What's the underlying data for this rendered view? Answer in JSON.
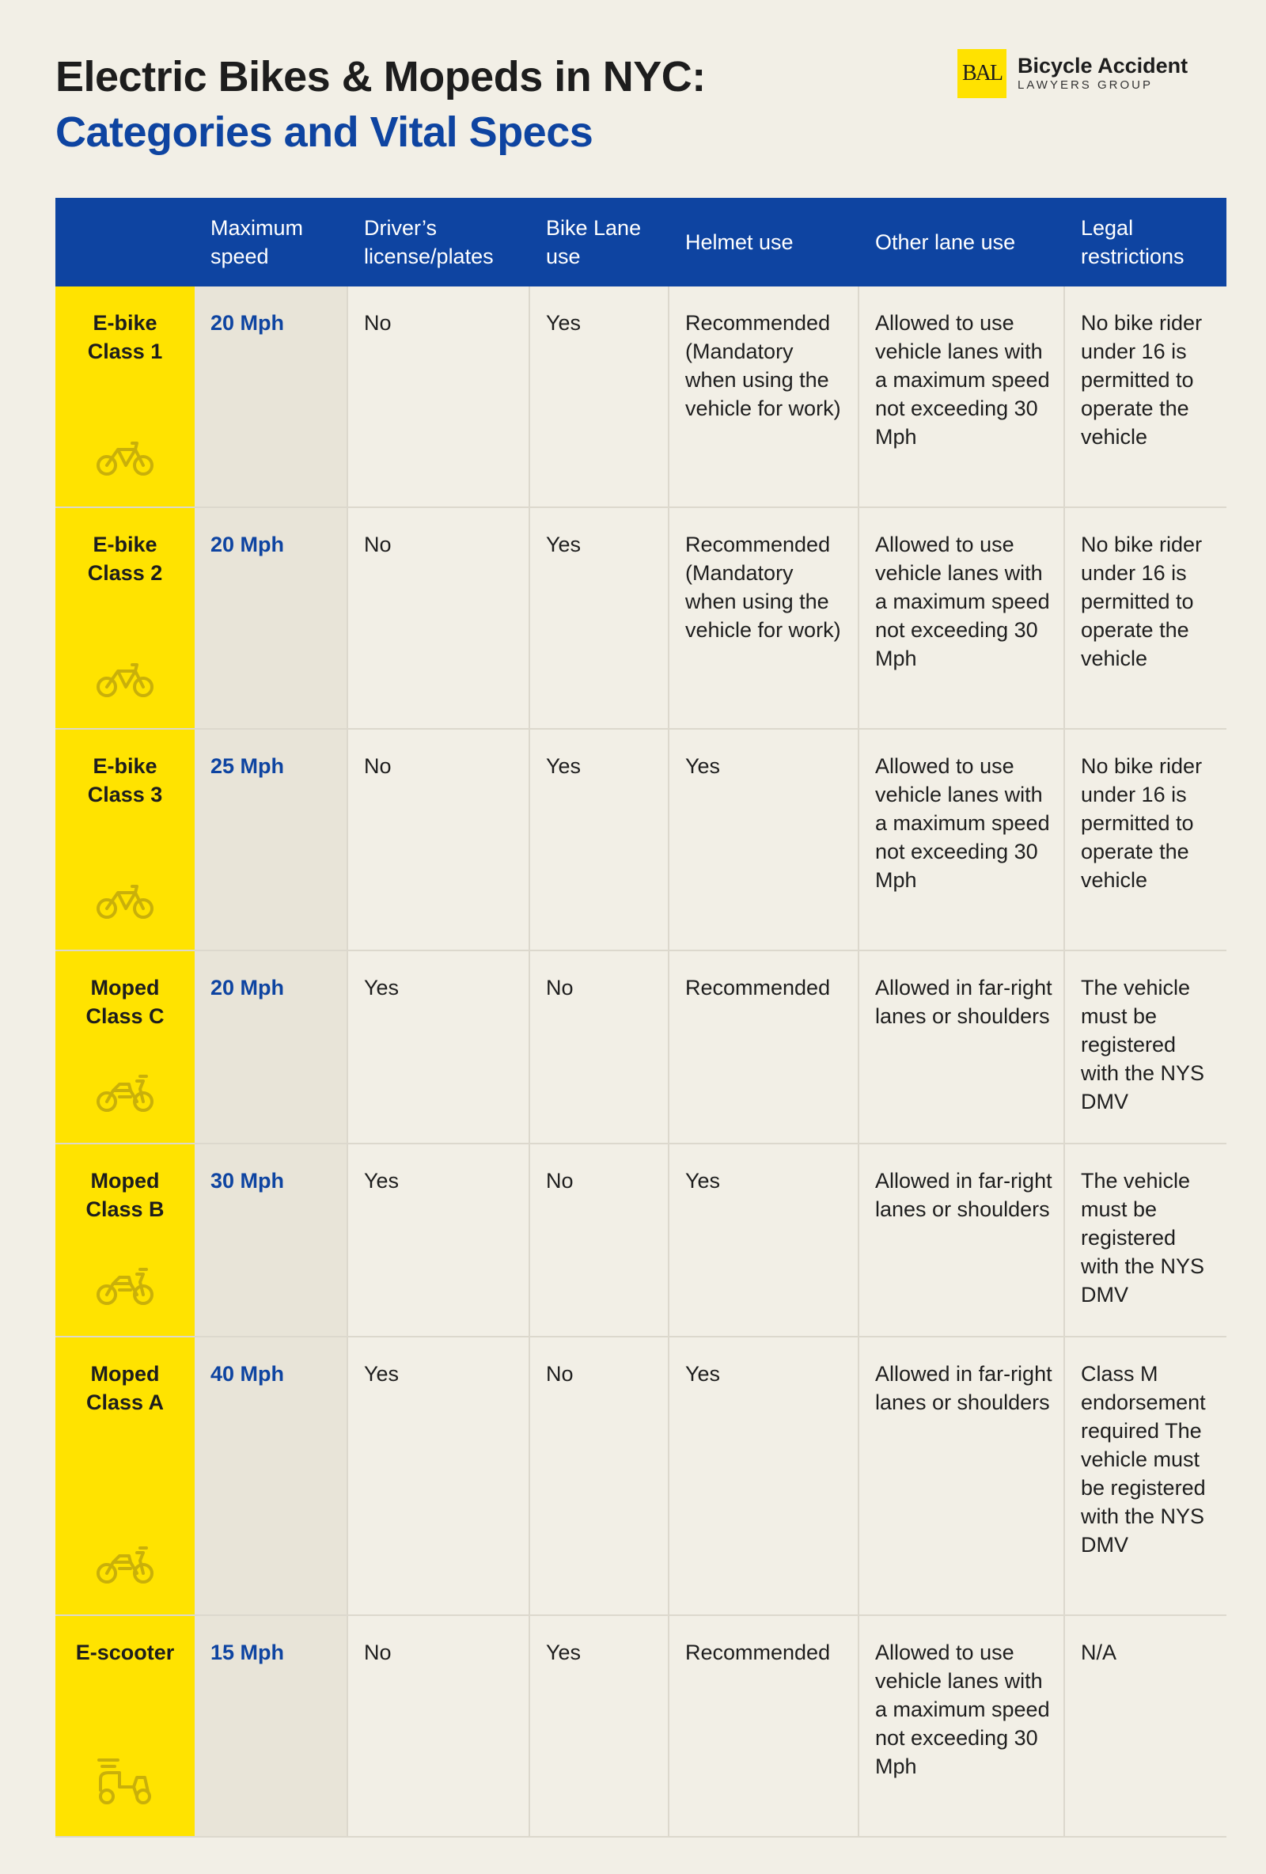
{
  "title": {
    "line1": "Electric Bikes & Mopeds in NYC:",
    "line2": "Categories and Vital Specs"
  },
  "logo": {
    "mark": "BAL",
    "name": "Bicycle Accident",
    "sub": "LAWYERS GROUP"
  },
  "colors": {
    "blue": "#0e44a1",
    "yellow": "#ffe300",
    "background": "#f2efe6"
  },
  "table": {
    "headers": [
      "",
      "Maximum speed",
      "Driver’s license/plates",
      "Bike Lane use",
      "Helmet use",
      "Other lane use",
      "Legal restrictions"
    ],
    "rows": [
      {
        "category": "E-bike Class 1",
        "icon": "bicycle-icon",
        "speed": "20 Mph",
        "license": "No",
        "bike_lane": "Yes",
        "helmet": "Recommended (Mandatory when using the vehicle for work)",
        "other_lane": "Allowed to use vehicle lanes with a maximum speed not exceeding 30 Mph",
        "legal": "No bike rider under 16 is permitted to operate the vehicle"
      },
      {
        "category": "E-bike Class 2",
        "icon": "bicycle-icon",
        "speed": "20 Mph",
        "license": "No",
        "bike_lane": "Yes",
        "helmet": "Recommended (Mandatory when using the vehicle for work)",
        "other_lane": "Allowed to use vehicle lanes with a maximum speed not exceeding 30 Mph",
        "legal": "No bike rider under 16 is permitted to operate the vehicle"
      },
      {
        "category": "E-bike Class 3",
        "icon": "bicycle-icon",
        "speed": "25 Mph",
        "license": "No",
        "bike_lane": "Yes",
        "helmet": "Yes",
        "other_lane": "Allowed to use vehicle lanes with a maximum speed not exceeding 30 Mph",
        "legal": "No bike rider under 16 is permitted to operate the vehicle"
      },
      {
        "category": "Moped Class C",
        "icon": "moped-icon",
        "speed": "20 Mph",
        "license": "Yes",
        "bike_lane": "No",
        "helmet": "Recommended",
        "other_lane": "Allowed in far-right lanes or shoulders",
        "legal": "The vehicle must be registered with the NYS DMV"
      },
      {
        "category": "Moped Class B",
        "icon": "moped-icon",
        "speed": "30 Mph",
        "license": "Yes",
        "bike_lane": "No",
        "helmet": "Yes",
        "other_lane": "Allowed in far-right lanes or shoulders",
        "legal": "The vehicle must be registered with the NYS DMV"
      },
      {
        "category": "Moped Class A",
        "icon": "moped-icon",
        "speed": "40 Mph",
        "license": "Yes",
        "bike_lane": "No",
        "helmet": "Yes",
        "other_lane": "Allowed in far-right lanes or shoulders",
        "legal": "Class M endorsement required The vehicle must be registered with the NYS DMV"
      },
      {
        "category": "E-scooter",
        "icon": "scooter-icon",
        "speed": "15 Mph",
        "license": "No",
        "bike_lane": "Yes",
        "helmet": "Recommended",
        "other_lane": "Allowed to use vehicle lanes with a maximum speed not exceeding 30 Mph",
        "legal": "N/A"
      }
    ]
  }
}
